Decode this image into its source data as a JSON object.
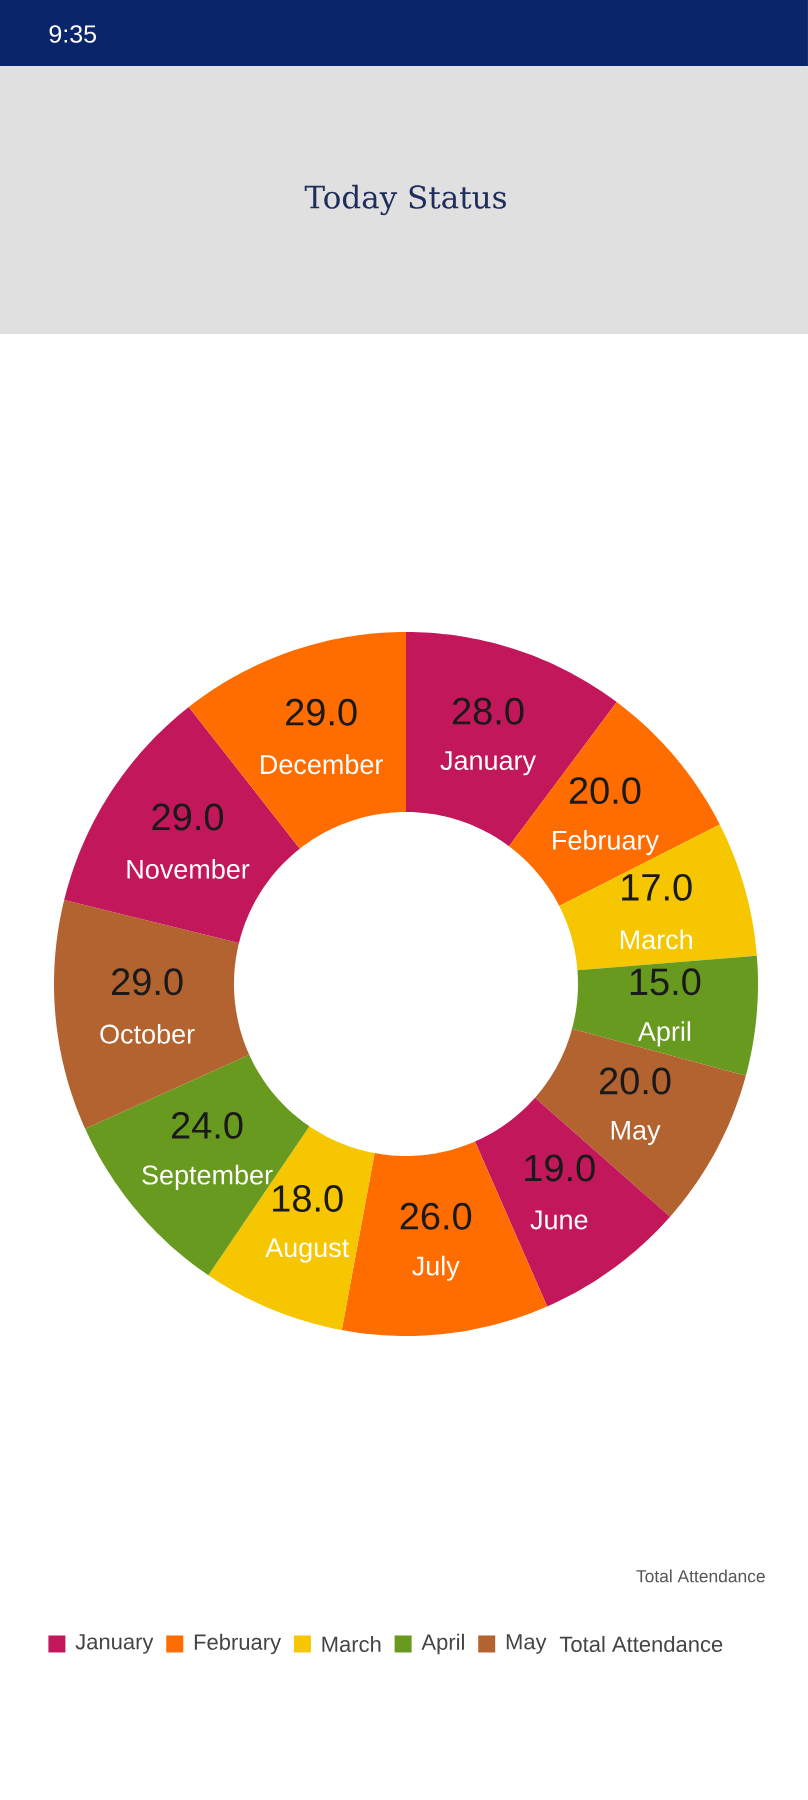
{
  "chart_data": {
    "type": "donut",
    "title": "Today Status",
    "categories": [
      "January",
      "February",
      "March",
      "April",
      "May",
      "June",
      "July",
      "August",
      "September",
      "October",
      "November",
      "December"
    ],
    "values": [
      28,
      20,
      17,
      15,
      20,
      19,
      26,
      18,
      24,
      29,
      29,
      29
    ],
    "value_labels": [
      "28.0",
      "20.0",
      "17.0",
      "15.0",
      "20.0",
      "19.0",
      "26.0",
      "18.0",
      "24.0",
      "29.0",
      "29.0",
      "29.0"
    ],
    "colors": [
      "#c2185b",
      "#ff6d00",
      "#f6c700",
      "#679a1f",
      "#b3632f",
      "#c2185b",
      "#ff6d00",
      "#f6c700",
      "#679a1f",
      "#b3632f",
      "#c2185b",
      "#ff6d00"
    ],
    "legend": "bottom",
    "legend_title": "Total Attendance",
    "annotations": [
      "Total Attendance",
      "9:35"
    ]
  }
}
